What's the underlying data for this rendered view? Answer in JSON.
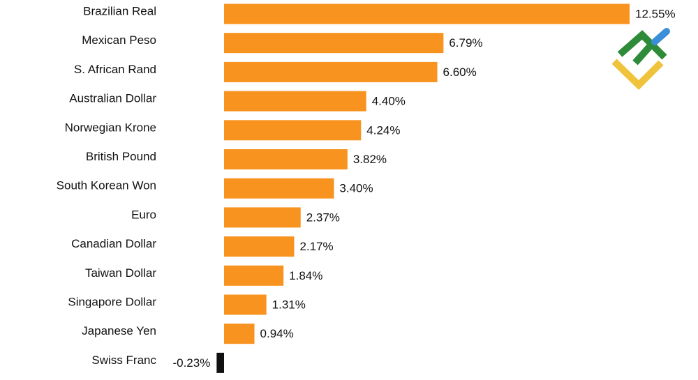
{
  "chart_data": {
    "type": "bar",
    "orientation": "horizontal",
    "categories": [
      "Brazilian Real",
      "Mexican Peso",
      "S. African Rand",
      "Australian Dollar",
      "Norwegian Krone",
      "British Pound",
      "South Korean Won",
      "Euro",
      "Canadian Dollar",
      "Taiwan Dollar",
      "Singapore Dollar",
      "Japanese Yen",
      "Swiss Franc"
    ],
    "values": [
      12.55,
      6.79,
      6.6,
      4.4,
      4.24,
      3.82,
      3.4,
      2.37,
      2.17,
      1.84,
      1.31,
      0.94,
      -0.23
    ],
    "value_labels": [
      "12.55%",
      "6.79%",
      "6.60%",
      "4.40%",
      "4.24%",
      "3.82%",
      "3.40%",
      "2.37%",
      "2.17%",
      "1.84%",
      "1.31%",
      "0.94%",
      "-0.23%"
    ],
    "color": "#f7931e",
    "negative_color": "#111111"
  }
}
